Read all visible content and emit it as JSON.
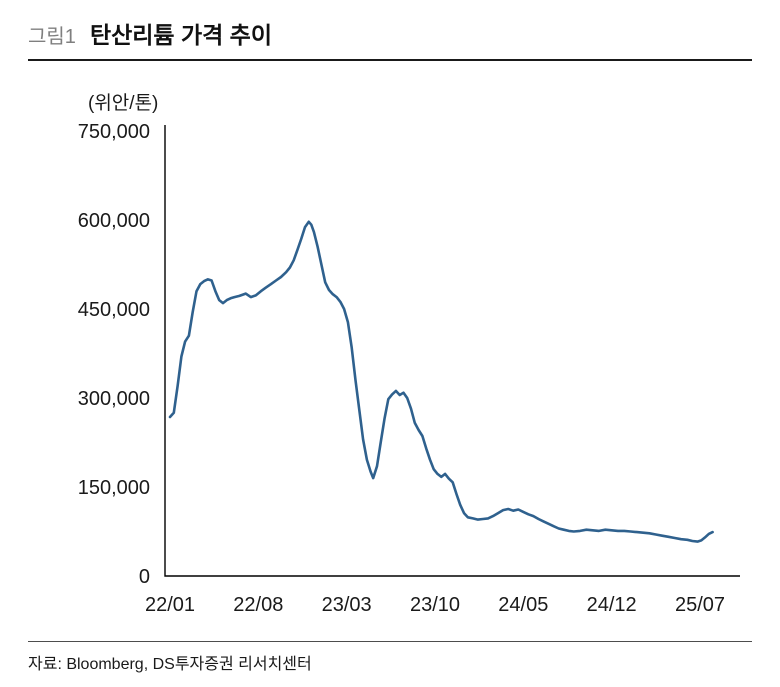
{
  "header": {
    "figure_label": "그림1",
    "title": "탄산리튬 가격 추이"
  },
  "footer": {
    "source": "자료: Bloomberg, DS투자증권 리서치센터"
  },
  "chart_data": {
    "type": "line",
    "title": "탄산리튬 가격 추이",
    "unit_label": "(위안/톤)",
    "ylabel": "위안/톤",
    "series_name": "탄산리튬 가격",
    "line_color": "#2f618e",
    "axis_color": "#000000",
    "grid": false,
    "legend": "none",
    "ylim": [
      0,
      750000
    ],
    "y_ticks": [
      0,
      150000,
      300000,
      450000,
      600000,
      750000
    ],
    "x_ticks": [
      {
        "m": 0,
        "label": "22/01"
      },
      {
        "m": 7,
        "label": "22/08"
      },
      {
        "m": 14,
        "label": "23/03"
      },
      {
        "m": 21,
        "label": "23/10"
      },
      {
        "m": 28,
        "label": "24/05"
      },
      {
        "m": 35,
        "label": "24/12"
      },
      {
        "m": 42,
        "label": "25/07"
      }
    ],
    "x_unit": "months_since_2022_01",
    "points": [
      [
        0,
        268000
      ],
      [
        0.3,
        275000
      ],
      [
        0.6,
        320000
      ],
      [
        0.9,
        370000
      ],
      [
        1.2,
        395000
      ],
      [
        1.5,
        405000
      ],
      [
        1.8,
        445000
      ],
      [
        2.1,
        480000
      ],
      [
        2.4,
        492000
      ],
      [
        2.7,
        497000
      ],
      [
        3,
        500000
      ],
      [
        3.3,
        498000
      ],
      [
        3.6,
        480000
      ],
      [
        3.9,
        465000
      ],
      [
        4.2,
        460000
      ],
      [
        4.5,
        465000
      ],
      [
        4.8,
        468000
      ],
      [
        5.1,
        470000
      ],
      [
        5.5,
        472000
      ],
      [
        6,
        476000
      ],
      [
        6.4,
        470000
      ],
      [
        6.8,
        473000
      ],
      [
        7.2,
        480000
      ],
      [
        7.6,
        486000
      ],
      [
        8,
        492000
      ],
      [
        8.4,
        498000
      ],
      [
        8.8,
        504000
      ],
      [
        9.2,
        512000
      ],
      [
        9.5,
        520000
      ],
      [
        9.8,
        532000
      ],
      [
        10.1,
        550000
      ],
      [
        10.4,
        568000
      ],
      [
        10.7,
        588000
      ],
      [
        11,
        597000
      ],
      [
        11.2,
        592000
      ],
      [
        11.4,
        580000
      ],
      [
        11.7,
        555000
      ],
      [
        12,
        525000
      ],
      [
        12.3,
        495000
      ],
      [
        12.6,
        482000
      ],
      [
        12.9,
        475000
      ],
      [
        13.2,
        470000
      ],
      [
        13.5,
        462000
      ],
      [
        13.8,
        450000
      ],
      [
        14.1,
        428000
      ],
      [
        14.4,
        385000
      ],
      [
        14.7,
        330000
      ],
      [
        15,
        280000
      ],
      [
        15.3,
        230000
      ],
      [
        15.6,
        196000
      ],
      [
        15.9,
        176000
      ],
      [
        16.1,
        165000
      ],
      [
        16.4,
        185000
      ],
      [
        16.7,
        225000
      ],
      [
        17,
        265000
      ],
      [
        17.3,
        298000
      ],
      [
        17.6,
        306000
      ],
      [
        17.9,
        312000
      ],
      [
        18.2,
        305000
      ],
      [
        18.5,
        309000
      ],
      [
        18.8,
        300000
      ],
      [
        19.1,
        282000
      ],
      [
        19.4,
        258000
      ],
      [
        19.7,
        246000
      ],
      [
        20,
        236000
      ],
      [
        20.3,
        215000
      ],
      [
        20.6,
        196000
      ],
      [
        20.9,
        180000
      ],
      [
        21.2,
        172000
      ],
      [
        21.5,
        167000
      ],
      [
        21.8,
        172000
      ],
      [
        22.1,
        164000
      ],
      [
        22.4,
        158000
      ],
      [
        22.7,
        138000
      ],
      [
        23,
        120000
      ],
      [
        23.3,
        106000
      ],
      [
        23.6,
        99000
      ],
      [
        24,
        97000
      ],
      [
        24.4,
        95000
      ],
      [
        24.8,
        96000
      ],
      [
        25.2,
        97000
      ],
      [
        25.6,
        101000
      ],
      [
        26,
        106000
      ],
      [
        26.4,
        111000
      ],
      [
        26.8,
        113000
      ],
      [
        27.2,
        110000
      ],
      [
        27.6,
        112000
      ],
      [
        28,
        108000
      ],
      [
        28.4,
        104000
      ],
      [
        28.8,
        101000
      ],
      [
        29.2,
        96000
      ],
      [
        29.6,
        92000
      ],
      [
        30,
        88000
      ],
      [
        30.4,
        84000
      ],
      [
        30.8,
        80000
      ],
      [
        31.2,
        78000
      ],
      [
        31.6,
        76000
      ],
      [
        32,
        75000
      ],
      [
        32.5,
        76000
      ],
      [
        33,
        78000
      ],
      [
        33.5,
        77000
      ],
      [
        34,
        76000
      ],
      [
        34.5,
        78000
      ],
      [
        35,
        77000
      ],
      [
        35.5,
        76000
      ],
      [
        36,
        76000
      ],
      [
        36.5,
        75000
      ],
      [
        37,
        74000
      ],
      [
        37.5,
        73000
      ],
      [
        38,
        72000
      ],
      [
        38.5,
        70000
      ],
      [
        39,
        68000
      ],
      [
        39.5,
        66000
      ],
      [
        40,
        64000
      ],
      [
        40.5,
        62000
      ],
      [
        41,
        61000
      ],
      [
        41.4,
        59000
      ],
      [
        41.8,
        58000
      ],
      [
        42.1,
        60000
      ],
      [
        42.4,
        65000
      ],
      [
        42.7,
        71000
      ],
      [
        43,
        74000
      ]
    ]
  }
}
